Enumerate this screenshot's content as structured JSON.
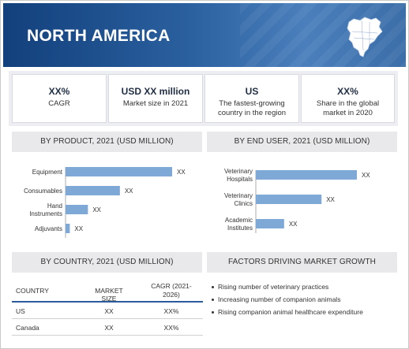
{
  "header": {
    "title": "NORTH AMERICA",
    "map_icon": "north-america-map-icon"
  },
  "kpis": [
    {
      "value": "XX%",
      "label": "CAGR"
    },
    {
      "value": "USD XX million",
      "label": "Market size in 2021"
    },
    {
      "value": "US",
      "label": "The fastest-growing country in the region"
    },
    {
      "value": "XX%",
      "label": "Share in the global market in 2020"
    }
  ],
  "by_product": {
    "heading": "BY PRODUCT, 2021 (USD MILLION)"
  },
  "by_end_user": {
    "heading": "BY END USER, 2021 (USD MILLION)"
  },
  "by_country": {
    "heading": "BY COUNTRY, 2021 (USD MILLION)",
    "columns": [
      "COUNTRY",
      "MARKET SIZE",
      "CAGR (2021-2026)"
    ],
    "rows": [
      {
        "country": "US",
        "market_size": "XX",
        "cagr": "XX%"
      },
      {
        "country": "Canada",
        "market_size": "XX",
        "cagr": "XX%"
      }
    ]
  },
  "factors": {
    "heading": "FACTORS DRIVING MARKET GROWTH",
    "items": [
      "Rising number of veterinary practices",
      "Increasing number of companion animals",
      "Rising companion animal healthcare expenditure"
    ]
  },
  "colors": {
    "bar": "#7ea8d6",
    "header_dark": "#12407c",
    "panel_head": "#e9e9ec"
  },
  "chart_data": [
    {
      "type": "bar",
      "orientation": "horizontal",
      "categories": [
        "Equipment",
        "Consumables",
        "Hand Instruments",
        "Adjuvants"
      ],
      "values": [
        100,
        51,
        21,
        4
      ],
      "data_labels": [
        "XX",
        "XX",
        "XX",
        "XX"
      ],
      "xlim": [
        0,
        100
      ]
    },
    {
      "type": "bar",
      "orientation": "horizontal",
      "categories": [
        "Veterinary Hospitals",
        "Veterinary Clinics",
        "Academic Institutes"
      ],
      "values": [
        100,
        65,
        28
      ],
      "data_labels": [
        "XX",
        "XX",
        "XX"
      ],
      "xlim": [
        0,
        100
      ]
    }
  ]
}
